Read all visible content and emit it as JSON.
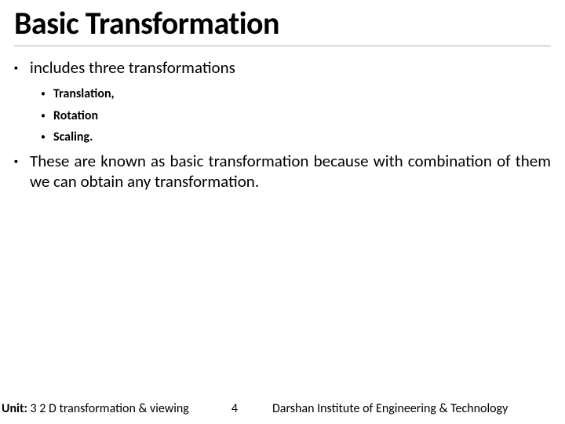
{
  "title": "Basic Transformation",
  "bullets": {
    "intro": "includes three transformations",
    "items": [
      "Translation,",
      "Rotation",
      "Scaling."
    ],
    "note": "These are known as basic transformation because with combination of them we can obtain any transformation."
  },
  "footer": {
    "unit_label": "Unit:",
    "unit_text": " 3 2 D transformation & viewing",
    "page": "4",
    "org": "Darshan Institute of Engineering & Technology"
  },
  "style": {
    "title_fontsize": 40,
    "l1_fontsize": 21,
    "l2_fontsize": 16,
    "footer_fontsize": 16,
    "text_color": "#000000",
    "background_color": "#ffffff",
    "rule_color": "#b0b0b0"
  }
}
